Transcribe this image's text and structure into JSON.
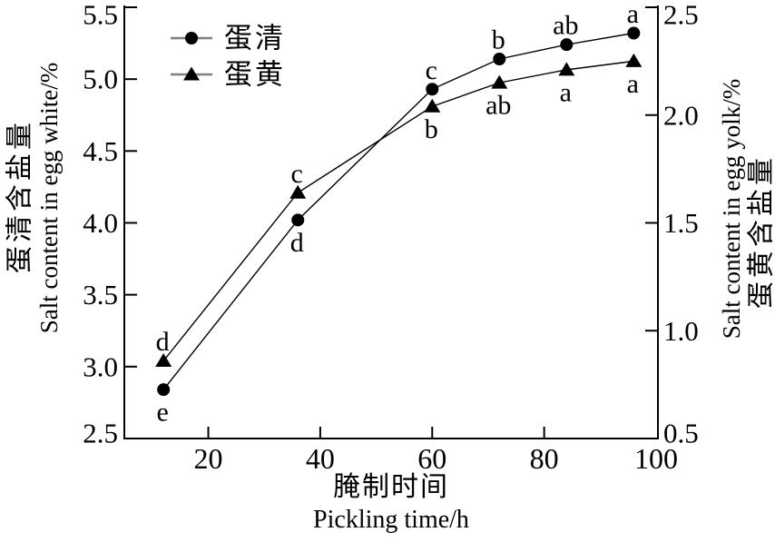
{
  "figure": {
    "background": "#ffffff",
    "description": "Dual-axis line chart of salt content in egg white and egg yolk versus pickling time"
  },
  "chart_data": {
    "type": "line",
    "x": [
      12,
      36,
      60,
      72,
      84,
      96
    ],
    "x_range": [
      5,
      100
    ],
    "x_ticks": [
      20,
      40,
      60,
      80,
      100
    ],
    "xlabel_zh": "腌制时间",
    "xlabel_en": "Pickling time/h",
    "left_axis": {
      "label_zh": "蛋清含盐量",
      "label_en": "Salt content in egg white/%",
      "ticks": [
        5.5,
        5.0,
        4.5,
        4.0,
        3.5,
        3.0,
        2.5
      ],
      "range": [
        2.5,
        5.5
      ]
    },
    "right_axis": {
      "label_en": "Salt content in egg yolk/%",
      "label_zh": "蛋黄含盐量",
      "ticks": [
        2.5,
        2.0,
        1.5,
        1.0,
        0.5
      ],
      "range": [
        0.5,
        2.5
      ]
    },
    "series": [
      {
        "name": "蛋清",
        "axis": "left",
        "marker": "circle",
        "values": [
          2.84,
          4.02,
          4.93,
          5.14,
          5.24,
          5.32
        ],
        "point_labels": [
          {
            "text": "e",
            "pos": "below"
          },
          {
            "text": "d",
            "pos": "below"
          },
          {
            "text": "c",
            "pos": "above"
          },
          {
            "text": "b",
            "pos": "above"
          },
          {
            "text": "ab",
            "pos": "above"
          },
          {
            "text": "a",
            "pos": "above"
          }
        ]
      },
      {
        "name": "蛋黄",
        "axis": "right",
        "marker": "triangle",
        "values": [
          0.86,
          1.64,
          2.04,
          2.15,
          2.21,
          2.25
        ],
        "point_labels": [
          {
            "text": "d",
            "pos": "above"
          },
          {
            "text": "c",
            "pos": "above"
          },
          {
            "text": "b",
            "pos": "below"
          },
          {
            "text": "ab",
            "pos": "below"
          },
          {
            "text": "a",
            "pos": "below"
          },
          {
            "text": "a",
            "pos": "below"
          }
        ]
      }
    ],
    "legend": {
      "position": "top-left-inside",
      "entries": [
        {
          "label": "蛋清",
          "marker": "circle"
        },
        {
          "label": "蛋黄",
          "marker": "triangle"
        }
      ]
    },
    "grid": false,
    "colors": {
      "line": "#000000",
      "marker": "#000000",
      "legend_line": "#7f7f7f",
      "background": "#ffffff"
    }
  }
}
